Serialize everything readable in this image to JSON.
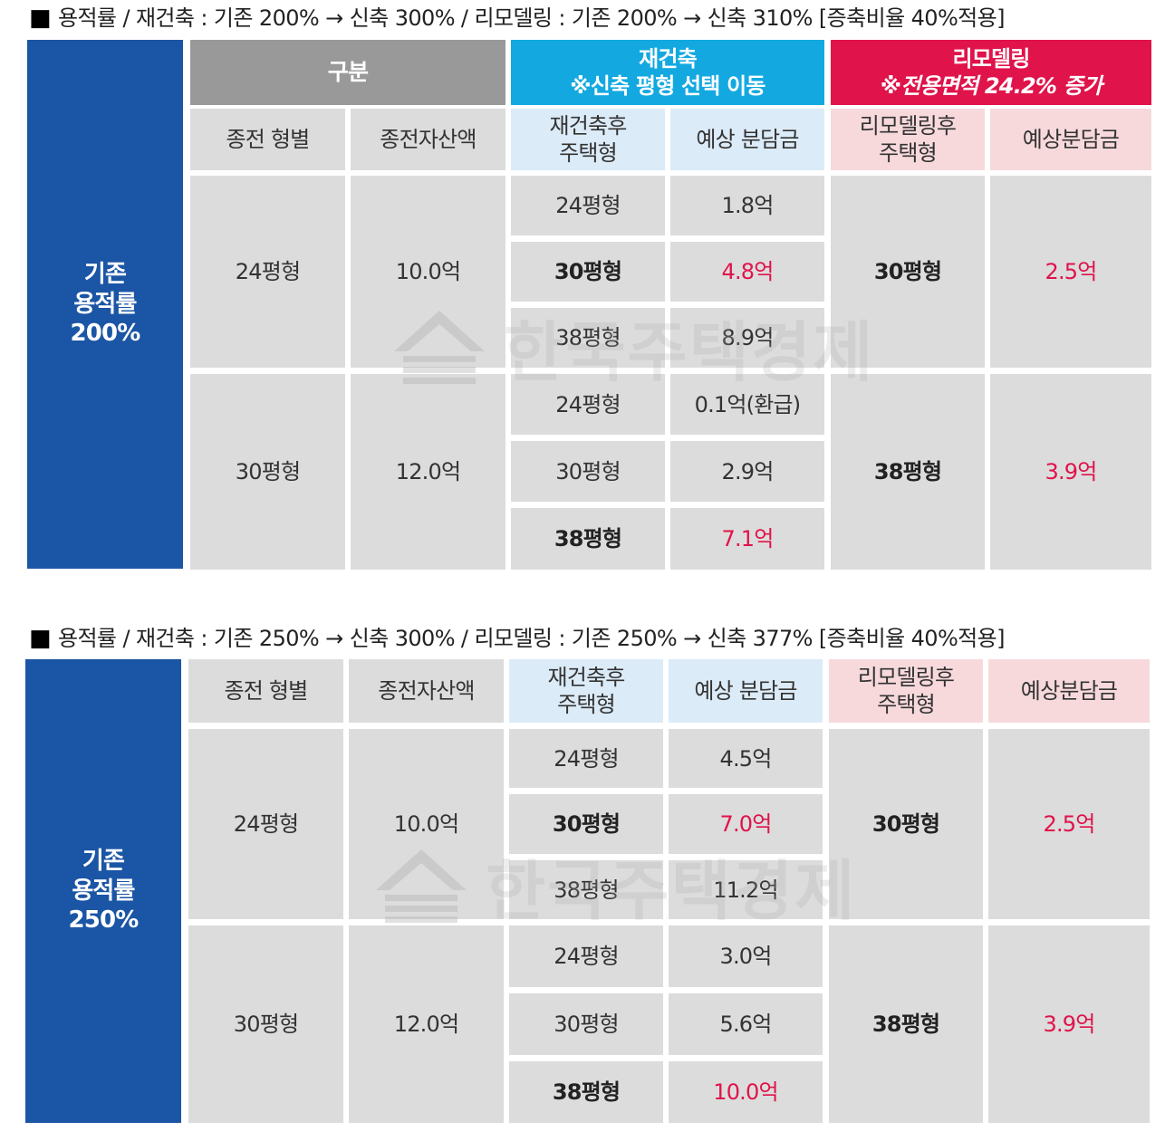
{
  "section1": {
    "heading": "용적률 / 재건축 : 기존 200% → 신축 300% / 리모델링 : 기존 200% → 신축 310% [증축비율 40%적용]",
    "group_label": [
      "기존",
      "용적률",
      "200%"
    ],
    "header": {
      "gubun": "구분",
      "rebuild_title": "재건축",
      "rebuild_note": "※신축 평형 선택 이동",
      "remodel_title": "리모델링",
      "remodel_note": "※전용면적 24.2% 증가"
    },
    "subheader": {
      "old_type": "종전 형별",
      "old_asset": "종전자산액",
      "rebuild_type": [
        "재건축후",
        "주택형"
      ],
      "rebuild_cost": "예상 분담금",
      "remodel_type": [
        "리모델링후",
        "주택형"
      ],
      "remodel_cost": "예상분담금"
    },
    "rows": [
      {
        "old_type": "24평형",
        "old_asset": "10.0억",
        "rebuild": [
          {
            "type": "24평형",
            "cost": "1.8억"
          },
          {
            "type": "30평형",
            "cost": "4.8억"
          },
          {
            "type": "38평형",
            "cost": "8.9억"
          }
        ],
        "remodel_type": "30평형",
        "remodel_cost": "2.5억"
      },
      {
        "old_type": "30평형",
        "old_asset": "12.0억",
        "rebuild": [
          {
            "type": "24평형",
            "cost": "0.1억(환급)"
          },
          {
            "type": "30평형",
            "cost": "2.9억"
          },
          {
            "type": "38평형",
            "cost": "7.1억"
          }
        ],
        "remodel_type": "38평형",
        "remodel_cost": "3.9억"
      }
    ],
    "watermark": "한국주택경제"
  },
  "section2": {
    "heading": "용적률 / 재건축 : 기존 250% → 신축 300% / 리모델링 : 기존 250% → 신축 377% [증축비율 40%적용]",
    "group_label": [
      "기존",
      "용적률",
      "250%"
    ],
    "subheader": {
      "old_type": "종전 형별",
      "old_asset": "종전자산액",
      "rebuild_type": [
        "재건축후",
        "주택형"
      ],
      "rebuild_cost": "예상 분담금",
      "remodel_type": [
        "리모델링후",
        "주택형"
      ],
      "remodel_cost": "예상분담금"
    },
    "rows": [
      {
        "old_type": "24평형",
        "old_asset": "10.0억",
        "rebuild": [
          {
            "type": "24평형",
            "cost": "4.5억"
          },
          {
            "type": "30평형",
            "cost": "7.0억"
          },
          {
            "type": "38평형",
            "cost": "11.2억"
          }
        ],
        "remodel_type": "30평형",
        "remodel_cost": "2.5억"
      },
      {
        "old_type": "30평형",
        "old_asset": "12.0억",
        "rebuild": [
          {
            "type": "24평형",
            "cost": "3.0억"
          },
          {
            "type": "30평형",
            "cost": "5.6억"
          },
          {
            "type": "38평형",
            "cost": "10.0억"
          }
        ],
        "remodel_type": "38평형",
        "remodel_cost": "3.9억"
      }
    ],
    "watermark": "한국주택경제"
  },
  "colors": {
    "group_blue": "#1b55a5",
    "header_gray": "#999999",
    "rebuild_cyan": "#13a9e0",
    "remodel_red": "#e0134a",
    "rebuild_light": "#dcebf8",
    "remodel_light": "#f7d9dc",
    "cell_gray": "#dcdcdc",
    "highlight_red": "#e0134a"
  }
}
